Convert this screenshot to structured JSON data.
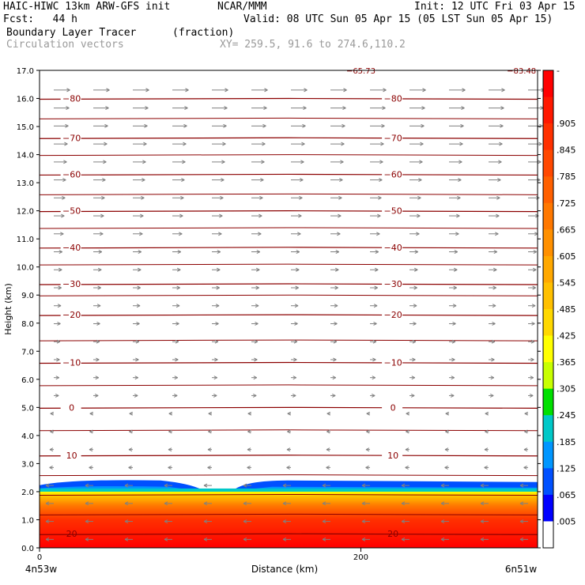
{
  "header": {
    "model": "HAIC-HIWC 13km ARW-GFS init",
    "org": "NCAR/MMM",
    "init": "Init: 12 UTC Fri 03 Apr 15",
    "fcst": "Fcst:   44 h",
    "valid": "Valid: 08 UTC Sun 05 Apr 15 (05 LST Sun 05 Apr 15)",
    "field": "Boundary Layer Tracer",
    "units": "(fraction)",
    "vectors": "Circulation vectors",
    "xy": "XY= 259.5, 91.6 to 274.6,110.2"
  },
  "colors": {
    "contour": "#8b0000",
    "vector": "#808080",
    "frame": "#000000"
  },
  "chart_data": {
    "type": "heatmap",
    "ylabel": "Height (km)",
    "xlabel": "Distance (km)",
    "x_left_label": "4n53w",
    "x_right_label": "6n51w",
    "yticks": [
      "0.0",
      "1.0",
      "2.0",
      "3.0",
      "4.0",
      "5.0",
      "6.0",
      "7.0",
      "8.0",
      "9.0",
      "10.0",
      "11.0",
      "12.0",
      "13.0",
      "14.0",
      "15.0",
      "16.0",
      "17.0"
    ],
    "xticks": [
      "0",
      "200"
    ],
    "xlim": [
      0,
      310
    ],
    "ylim": [
      0,
      17
    ],
    "colorbar": {
      "labels": [
        "-",
        ".905",
        ".845",
        ".785",
        ".725",
        ".665",
        ".605",
        ".545",
        ".485",
        ".425",
        ".365",
        ".305",
        ".245",
        ".185",
        ".125",
        ".065",
        ".005"
      ],
      "colors": [
        "#ff0000",
        "#ff1800",
        "#ff3000",
        "#ff4800",
        "#ff6000",
        "#ff7800",
        "#ff9000",
        "#ffa800",
        "#ffc000",
        "#ffd800",
        "#ffff00",
        "#c8ff00",
        "#00e000",
        "#00c8c8",
        "#0096ff",
        "#0050ff",
        "#0000ff",
        "#ffffff"
      ]
    },
    "contours": [
      {
        "label": "−80",
        "y_km": 16.0
      },
      {
        "label": "−70",
        "y_km": 14.6
      },
      {
        "label": "−60",
        "y_km": 13.3
      },
      {
        "label": "−50",
        "y_km": 12.0
      },
      {
        "label": "−40",
        "y_km": 10.7
      },
      {
        "label": "−30",
        "y_km": 9.4
      },
      {
        "label": "−20",
        "y_km": 8.3
      },
      {
        "label": "−10",
        "y_km": 6.6
      },
      {
        "label": "0",
        "y_km": 5.0
      },
      {
        "label": "10",
        "y_km": 3.3
      },
      {
        "label": "20",
        "y_km": 0.5
      }
    ],
    "extra_contours_km": [
      15.3,
      14.0,
      12.6,
      11.4,
      10.1,
      9.0,
      7.4,
      5.8,
      4.2,
      2.6,
      1.9,
      1.2
    ],
    "top_labels": [
      "−65.73",
      "−83.48"
    ],
    "tracer": {
      "boundary_layer_top_km": 2.0,
      "cloud_top_km": 2.4,
      "gap_x_km": [
        95,
        125
      ]
    }
  }
}
